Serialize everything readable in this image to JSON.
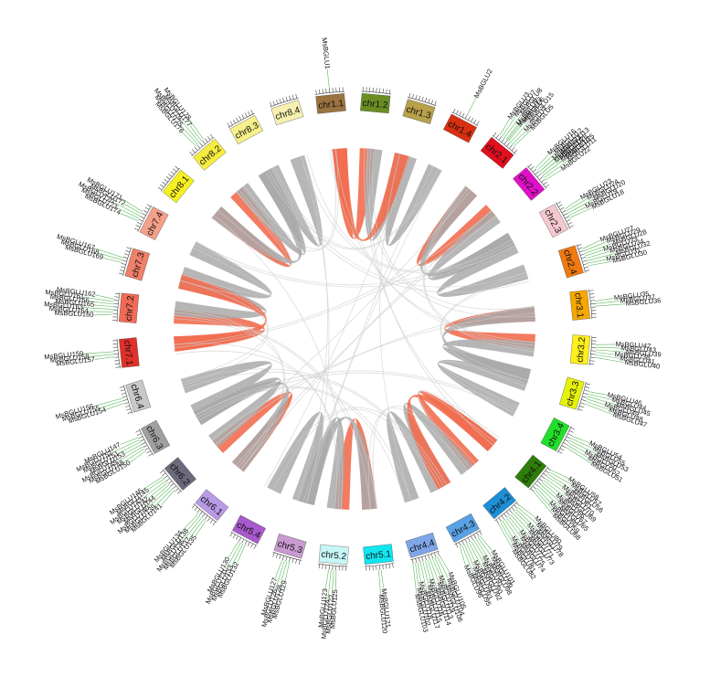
{
  "colors": {
    "link_gray": "#a9a9a9",
    "link_faint": "#cfcfcf",
    "link_red": "#f26d4f",
    "leader": "#5cb85c",
    "ring": "#ffffff"
  },
  "chromosomes": [
    {
      "name": "chr1.1",
      "color": "#9b7340"
    },
    {
      "name": "chr1.2",
      "color": "#6b8e23"
    },
    {
      "name": "chr1.3",
      "color": "#b8a14a"
    },
    {
      "name": "chr1.4",
      "color": "#d93010"
    },
    {
      "name": "chr2.1",
      "color": "#e0101e"
    },
    {
      "name": "chr2.2",
      "color": "#e010c8"
    },
    {
      "name": "chr2.3",
      "color": "#f5c8cf"
    },
    {
      "name": "chr2.4",
      "color": "#f07a10"
    },
    {
      "name": "chr3.1",
      "color": "#f5a800"
    },
    {
      "name": "chr3.2",
      "color": "#ffef1a"
    },
    {
      "name": "chr3.3",
      "color": "#e6f20a"
    },
    {
      "name": "chr3.4",
      "color": "#22e02a"
    },
    {
      "name": "chr4.1",
      "color": "#2f7d0a"
    },
    {
      "name": "chr4.2",
      "color": "#1e8fd6"
    },
    {
      "name": "chr4.3",
      "color": "#5aa2e6"
    },
    {
      "name": "chr4.4",
      "color": "#7ea6e8"
    },
    {
      "name": "chr5.1",
      "color": "#10e6f0"
    },
    {
      "name": "chr5.2",
      "color": "#c8f6f6"
    },
    {
      "name": "chr5.3",
      "color": "#c89ad0"
    },
    {
      "name": "chr5.4",
      "color": "#a85acc"
    },
    {
      "name": "chr6.1",
      "color": "#b89ae6"
    },
    {
      "name": "chr6.2",
      "color": "#6a6a7a"
    },
    {
      "name": "chr6.3",
      "color": "#a0a0a0"
    },
    {
      "name": "chr6.4",
      "color": "#c8c8c8"
    },
    {
      "name": "chr7.1",
      "color": "#e0302a"
    },
    {
      "name": "chr7.2",
      "color": "#f06a55"
    },
    {
      "name": "chr7.3",
      "color": "#f0806a"
    },
    {
      "name": "chr7.4",
      "color": "#f5a08a"
    },
    {
      "name": "chr8.1",
      "color": "#f6f020"
    },
    {
      "name": "chr8.2",
      "color": "#f5ec40"
    },
    {
      "name": "chr8.3",
      "color": "#f7ef8a"
    },
    {
      "name": "chr8.4",
      "color": "#f7f0b0"
    }
  ],
  "gene_groups": [
    {
      "chr": 0,
      "genes": [
        "MsBGLU1"
      ]
    },
    {
      "chr": 3,
      "genes": [
        "MsBGLU2"
      ]
    },
    {
      "chr": 4,
      "genes": [
        "MsBGLU3",
        "MsBGLU7",
        "MsBGLU8",
        "MsBGLU9",
        "MsBGLU6",
        "MsBGLU15",
        "MsBGLU4",
        "MsBGLU5"
      ]
    },
    {
      "chr": 4,
      "genes": [
        "MsBGLU17"
      ]
    },
    {
      "chr": 5,
      "genes": [
        "MsBGLU16",
        "MsBGLU12",
        "MsBGLU13",
        "MsBGLU14",
        "MsBGLU10",
        "MsBGLU11",
        "MsBGLU22"
      ]
    },
    {
      "chr": 5,
      "genes": [
        "MsBGLU21",
        "MsBGLU26",
        "MsBGLU25"
      ]
    },
    {
      "chr": 6,
      "genes": [
        "MsBGLU23",
        "MsBGLU24",
        "MsBGLU20",
        "MsBGLU19",
        "MsBGLU18"
      ]
    },
    {
      "chr": 7,
      "genes": [
        "MsBGLU27",
        "MsBGLU29",
        "MsBGLU28",
        "MsBGLU33",
        "MsBGLU34",
        "MsBGLU32",
        "MsBGLU31",
        "MsBGLU30"
      ]
    },
    {
      "chr": 8,
      "genes": [
        "MsBGLU35",
        "MsBGLU37",
        "MsBGLU36"
      ]
    },
    {
      "chr": 9,
      "genes": [
        "MsBGLU42",
        "MsBGLU43",
        "MsBGLU39",
        "MsBGLU38",
        "MsBGLU41",
        "MsBGLU40"
      ]
    },
    {
      "chr": 10,
      "genes": [
        "MsBGLU46",
        "MsBGLU44",
        "MsBGLU45",
        "MsBGLU49",
        "MsBGLU48",
        "MsBGLU47"
      ]
    },
    {
      "chr": 11,
      "genes": [
        "MsBGLU54",
        "MsBGLU55",
        "MsBGLU53",
        "MsBGLU50",
        "MsBGLU52",
        "MsBGLU51"
      ]
    },
    {
      "chr": 12,
      "genes": [
        "MsBGLU58",
        "MsBGLU57",
        "MsBGLU56",
        "MsBGLU61",
        "MsBGLU70",
        "MsBGLU69",
        "MsBGLU66",
        "MsBGLU67",
        "MsBGLU65",
        "MsBGLU60",
        "MsBGLU59",
        "MsBGLU68"
      ]
    },
    {
      "chr": 13,
      "genes": [
        "MsBGLU80",
        "MsBGLU79",
        "MsBGLU78",
        "MsBGLU77",
        "MsBGLU71",
        "MsBGLU73",
        "MsBGLU72",
        "MsBGLU75",
        "MsBGLU74",
        "MsBGLU76",
        "MsBGLU81",
        "MsBGLU82"
      ]
    },
    {
      "chr": 14,
      "genes": [
        "MsBGLU101",
        "MsBGLU99",
        "MsBGLU98",
        "MsBGLU91",
        "MsBGLU90",
        "MsBGLU92",
        "MsBGLU94",
        "MsBGLU93",
        "MsBGLU95",
        "MsBGLU96"
      ]
    },
    {
      "chr": 15,
      "genes": [
        "MsBGLU105",
        "MsBGLU104",
        "MsBGLU106",
        "MsBGLU119",
        "MsBGLU113",
        "MsBGLU114",
        "MsBGLU116",
        "MsBGLU115",
        "MsBGLU117",
        "MsBGLU118",
        "MsBGLU102",
        "MsBGLU103"
      ]
    },
    {
      "chr": 16,
      "genes": [
        "MsBGLU121",
        "MsBGLU120"
      ]
    },
    {
      "chr": 17,
      "genes": [
        "MsBGLU125",
        "MsBGLU122",
        "MsBGLU124",
        "MsBGLU123"
      ]
    },
    {
      "chr": 18,
      "genes": [
        "MsBGLU129",
        "MsBGLU128",
        "MsBGLU126",
        "MsBGLU127"
      ]
    },
    {
      "chr": 19,
      "genes": [
        "MsBGLU132",
        "MsBGLU133",
        "MsBGLU131",
        "MsBGLU130"
      ]
    },
    {
      "chr": 20,
      "genes": [
        "MsBGLU135",
        "MsBGLU137",
        "MsBGLU136",
        "MsBGLU138",
        "MsBGLU134"
      ]
    },
    {
      "chr": 21,
      "genes": [
        "MsBGLU141",
        "MsBGLU139",
        "MsBGLU140",
        "MsBGLU144",
        "MsBGLU142",
        "MsBGLU143",
        "MsBGLU145",
        "MsBGLU146"
      ]
    },
    {
      "chr": 22,
      "genes": [
        "MsBGLU150",
        "MsBGLU148",
        "MsBGLU149",
        "MsBGLU153",
        "MsBGLU151",
        "MsBGLU152",
        "MsBGLU147"
      ]
    },
    {
      "chr": 23,
      "genes": [
        "MsBGLU154",
        "MsBGLU155",
        "MsBGLU156"
      ]
    },
    {
      "chr": 24,
      "genes": [
        "MsBGLU157",
        "MsBGLU158",
        "MsBGLU159"
      ]
    },
    {
      "chr": 25,
      "genes": [
        "MsBGLU160",
        "MsBGLU164",
        "MsBGLU163",
        "MsBGLU165",
        "MsBGLU166",
        "MsBGLU161",
        "MsBGLU162"
      ]
    },
    {
      "chr": 26,
      "genes": [
        "MsBGLU169",
        "MsBGLU168",
        "MsBGLU167"
      ]
    },
    {
      "chr": 27,
      "genes": [
        "MsBGLU174",
        "MsBGLU173",
        "MsBGLU170",
        "MsBGLU172",
        "MsBGLU171"
      ]
    },
    {
      "chr": 29,
      "genes": [
        "MsBGLU176",
        "MsBGLU175",
        "MsBGLU179",
        "MsBGLU177",
        "MsBGLU178"
      ]
    }
  ]
}
